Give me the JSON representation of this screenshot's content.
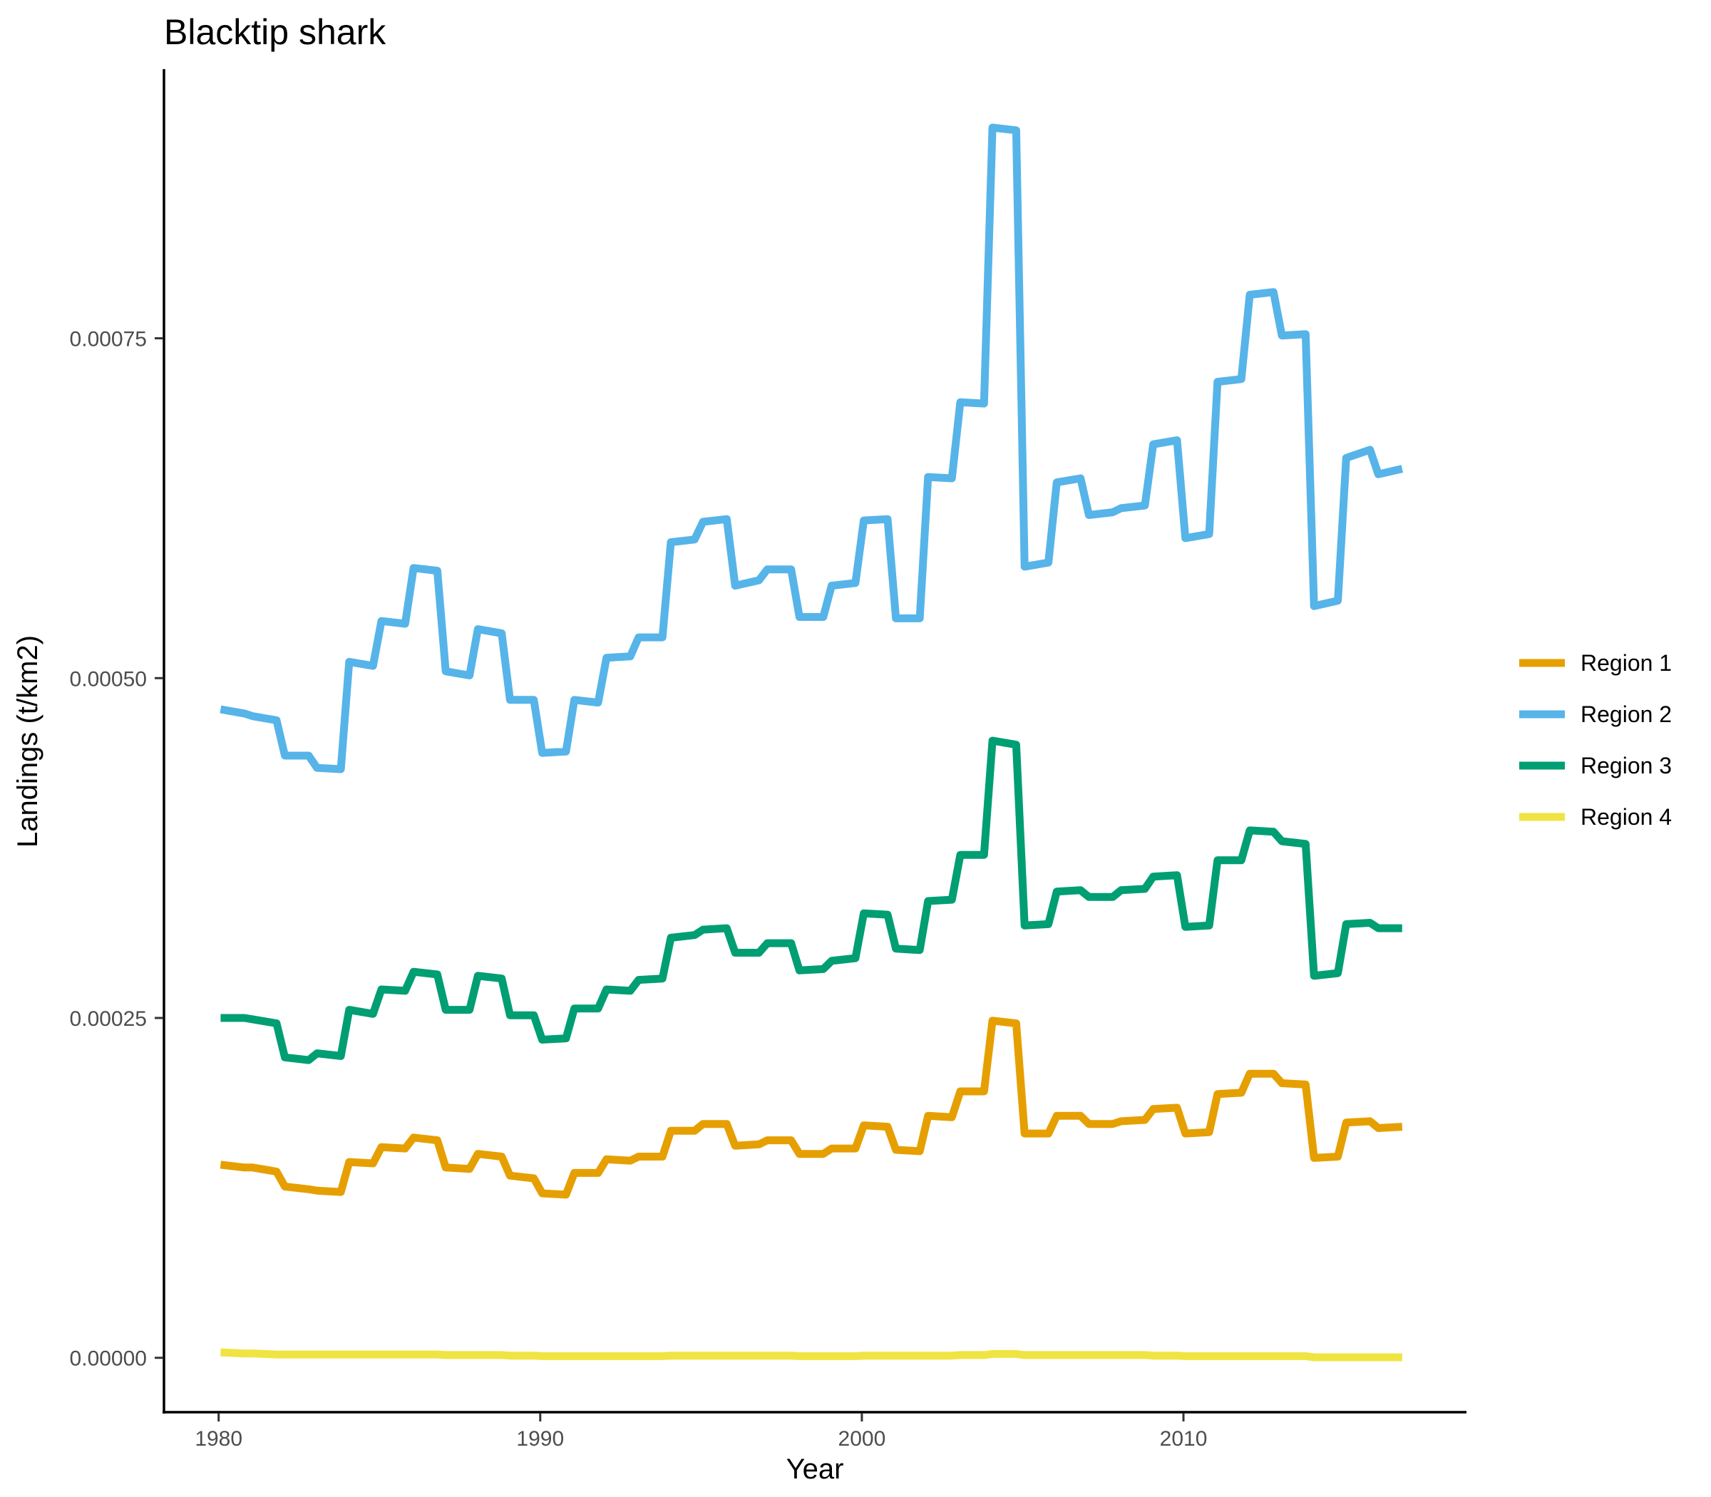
{
  "chart_data": {
    "type": "line",
    "title": "Blacktip shark",
    "xlabel": "Year",
    "ylabel": "Landings (t/km2)",
    "xlim": [
      1978.3,
      2018.8
    ],
    "ylim": [
      -4e-05,
      0.000948
    ],
    "x_ticks": [
      1980,
      1990,
      2000,
      2010
    ],
    "x_tick_labels": [
      "1980",
      "1990",
      "2000",
      "2010"
    ],
    "y_ticks": [
      0,
      0.00025,
      0.0005,
      0.00075
    ],
    "y_tick_labels": [
      "0.00000",
      "0.00025",
      "0.00050",
      "0.00075"
    ],
    "grid": false,
    "legend_position": "right",
    "years": [
      1980,
      1981,
      1982,
      1983,
      1984,
      1985,
      1986,
      1987,
      1988,
      1989,
      1990,
      1991,
      1992,
      1993,
      1994,
      1995,
      1996,
      1997,
      1998,
      1999,
      2000,
      2001,
      2002,
      2003,
      2004,
      2005,
      2006,
      2007,
      2008,
      2009,
      2010,
      2011,
      2012,
      2013,
      2014,
      2015,
      2016
    ],
    "series": [
      {
        "name": "Region 1",
        "color": "#E69F00",
        "start": [
          0.000142,
          0.00014,
          0.000126,
          0.000123,
          0.000144,
          0.000155,
          0.000162,
          0.00014,
          0.00015,
          0.000134,
          0.000121,
          0.000136,
          0.000146,
          0.000148,
          0.000167,
          0.000172,
          0.000156,
          0.00016,
          0.00015,
          0.000154,
          0.000171,
          0.000153,
          0.000178,
          0.000196,
          0.000248,
          0.000165,
          0.000178,
          0.000172,
          0.000174,
          0.000183,
          0.000165,
          0.000194,
          0.000209,
          0.000202,
          0.000147,
          0.000173,
          0.000169
        ],
        "end": [
          0.00014,
          0.000137,
          0.000124,
          0.000122,
          0.000143,
          0.000154,
          0.00016,
          0.000139,
          0.000148,
          0.000132,
          0.00012,
          0.000136,
          0.000145,
          0.000148,
          0.000167,
          0.000172,
          0.000157,
          0.00016,
          0.00015,
          0.000154,
          0.00017,
          0.000152,
          0.000177,
          0.000196,
          0.000246,
          0.000165,
          0.000178,
          0.000172,
          0.000175,
          0.000184,
          0.000166,
          0.000195,
          0.000209,
          0.000201,
          0.000148,
          0.000174,
          0.00017
        ]
      },
      {
        "name": "Region 2",
        "color": "#56B4E9",
        "start": [
          0.000477,
          0.000472,
          0.000443,
          0.000434,
          0.000512,
          0.000542,
          0.000581,
          0.000505,
          0.000536,
          0.000484,
          0.000445,
          0.000484,
          0.000515,
          0.00053,
          0.0006,
          0.000615,
          0.000568,
          0.00058,
          0.000545,
          0.000568,
          0.000616,
          0.000544,
          0.000648,
          0.000703,
          0.000905,
          0.000582,
          0.000644,
          0.00062,
          0.000625,
          0.000672,
          0.000603,
          0.000718,
          0.000782,
          0.000752,
          0.000553,
          0.000662,
          0.00065
        ],
        "end": [
          0.000474,
          0.000469,
          0.000443,
          0.000433,
          0.000509,
          0.00054,
          0.000579,
          0.000502,
          0.000533,
          0.000484,
          0.000446,
          0.000482,
          0.000516,
          0.00053,
          0.000602,
          0.000617,
          0.000572,
          0.00058,
          0.000545,
          0.00057,
          0.000617,
          0.000544,
          0.000647,
          0.000702,
          0.000903,
          0.000585,
          0.000647,
          0.000622,
          0.000627,
          0.000675,
          0.000606,
          0.00072,
          0.000784,
          0.000753,
          0.000557,
          0.000668,
          0.000654
        ]
      },
      {
        "name": "Region 3",
        "color": "#009E73",
        "start": [
          0.00025,
          0.000249,
          0.000221,
          0.000224,
          0.000256,
          0.000271,
          0.000284,
          0.000256,
          0.000281,
          0.000252,
          0.000234,
          0.000257,
          0.000271,
          0.000278,
          0.000309,
          0.000315,
          0.000298,
          0.000305,
          0.000285,
          0.000292,
          0.000327,
          0.000301,
          0.000336,
          0.00037,
          0.000454,
          0.000318,
          0.000343,
          0.000339,
          0.000344,
          0.000354,
          0.000317,
          0.000366,
          0.000388,
          0.00038,
          0.000281,
          0.000319,
          0.000316
        ],
        "end": [
          0.00025,
          0.000246,
          0.000219,
          0.000222,
          0.000253,
          0.00027,
          0.000282,
          0.000256,
          0.000279,
          0.000252,
          0.000235,
          0.000257,
          0.00027,
          0.000279,
          0.000311,
          0.000316,
          0.000298,
          0.000305,
          0.000286,
          0.000294,
          0.000326,
          0.0003,
          0.000337,
          0.00037,
          0.000451,
          0.000319,
          0.000344,
          0.000339,
          0.000345,
          0.000355,
          0.000318,
          0.000366,
          0.000387,
          0.000378,
          0.000283,
          0.00032,
          0.000316
        ]
      },
      {
        "name": "Region 4",
        "color": "#F0E442",
        "start": [
          4e-06,
          3.2e-06,
          2.4e-06,
          2.4e-06,
          2.4e-06,
          2.4e-06,
          2.4e-06,
          2e-06,
          2e-06,
          1.6e-06,
          1.2e-06,
          1.2e-06,
          1.2e-06,
          1.2e-06,
          1.6e-06,
          1.6e-06,
          1.6e-06,
          1.6e-06,
          1.2e-06,
          1.2e-06,
          1.6e-06,
          1.6e-06,
          1.6e-06,
          2e-06,
          2.8e-06,
          2e-06,
          2e-06,
          2e-06,
          2e-06,
          1.6e-06,
          1.2e-06,
          1.2e-06,
          1.2e-06,
          1.2e-06,
          4e-07,
          4e-07,
          4e-07
        ],
        "end": [
          3.2e-06,
          2.4e-06,
          2.4e-06,
          2.4e-06,
          2.4e-06,
          2.4e-06,
          2.4e-06,
          2e-06,
          2e-06,
          1.6e-06,
          1.2e-06,
          1.2e-06,
          1.2e-06,
          1.2e-06,
          1.6e-06,
          1.6e-06,
          1.6e-06,
          1.6e-06,
          1.2e-06,
          1.2e-06,
          1.6e-06,
          1.6e-06,
          1.6e-06,
          2e-06,
          2.8e-06,
          2e-06,
          2e-06,
          2e-06,
          2e-06,
          1.6e-06,
          1.2e-06,
          1.2e-06,
          1.2e-06,
          1.2e-06,
          4e-07,
          4e-07,
          4e-07
        ]
      }
    ]
  }
}
